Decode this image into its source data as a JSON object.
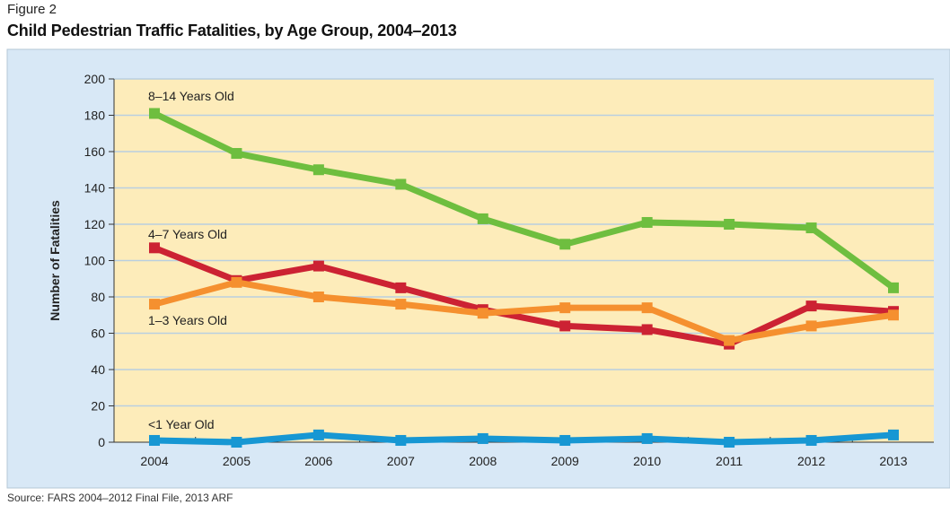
{
  "figure_label": "Figure 2",
  "source": "Source: FARS 2004–2012 Final File, 2013 ARF",
  "colors": {
    "panel": "#d8e8f6",
    "plot": "#fdecba",
    "grid": "#b9cfe0"
  },
  "chart_data": {
    "type": "line",
    "title": "Child Pedestrian Traffic Fatalities, by Age Group, 2004–2013",
    "xlabel": "",
    "ylabel": "Number of Fatalities",
    "ylim": [
      0,
      200
    ],
    "yticks": [
      0,
      20,
      40,
      60,
      80,
      100,
      120,
      140,
      160,
      180,
      200
    ],
    "grid": true,
    "x": [
      "2004",
      "2005",
      "2006",
      "2007",
      "2008",
      "2009",
      "2010",
      "2011",
      "2012",
      "2013"
    ],
    "series": [
      {
        "name": "8–14 Years Old",
        "color": "#6ebe3f",
        "values": [
          181,
          159,
          150,
          142,
          123,
          109,
          121,
          120,
          118,
          85
        ]
      },
      {
        "name": "4–7 Years Old",
        "color": "#cc2233",
        "values": [
          107,
          89,
          97,
          85,
          73,
          64,
          62,
          54,
          75,
          72
        ]
      },
      {
        "name": "1–3 Years Old",
        "color": "#f5902f",
        "values": [
          76,
          88,
          80,
          76,
          71,
          74,
          74,
          56,
          64,
          70
        ]
      },
      {
        "name": "<1 Year Old",
        "color": "#1797d3",
        "values": [
          1,
          0,
          4,
          1,
          2,
          1,
          2,
          0,
          1,
          4
        ]
      }
    ]
  }
}
